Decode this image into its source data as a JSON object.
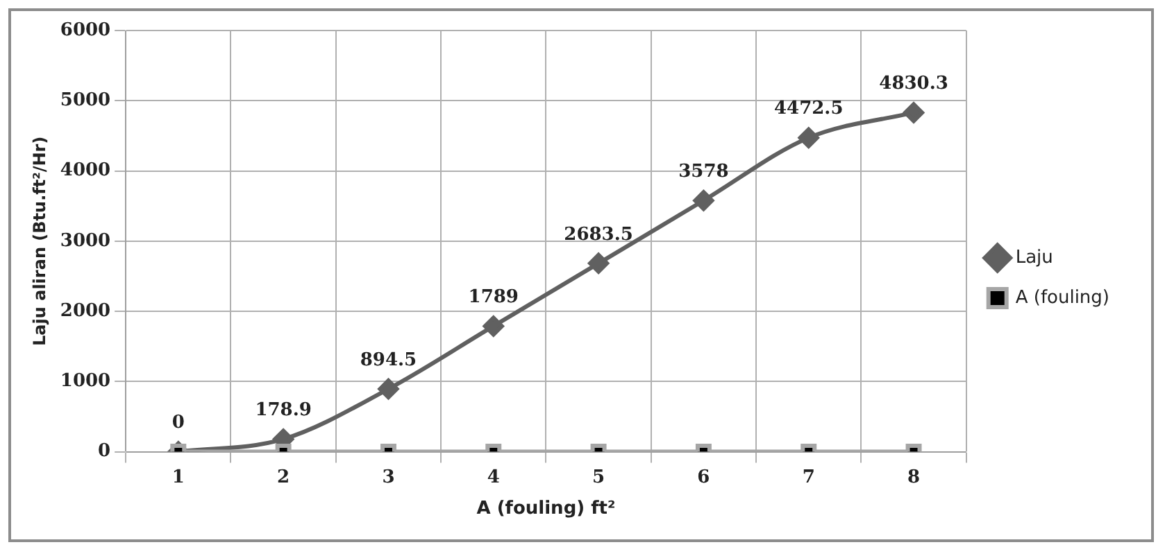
{
  "chart_data": {
    "type": "line",
    "xlabel": "A (fouling) ft²",
    "ylabel": "Laju aliran (Btu.ft²/Hr)",
    "categories": [
      "1",
      "2",
      "3",
      "4",
      "5",
      "6",
      "7",
      "8"
    ],
    "series": [
      {
        "name": "Laju",
        "color": "#606060",
        "marker": "diamond",
        "values": [
          0,
          178.9,
          894.5,
          1789,
          2683.5,
          3578,
          4472.5,
          4830.3
        ],
        "value_labels": [
          "0",
          "178.9",
          "894.5",
          "1789",
          "2683.5",
          "3578",
          "4472.5",
          "4830.3"
        ]
      },
      {
        "name": "A (fouling)",
        "color": "#a6a6a6",
        "marker": "square",
        "values": [
          0,
          0,
          0,
          0,
          0,
          0,
          0,
          0
        ]
      }
    ],
    "ylim": [
      0,
      6000
    ],
    "yticks": [
      0,
      1000,
      2000,
      3000,
      4000,
      5000,
      6000
    ],
    "grid": true,
    "legend": "right"
  }
}
